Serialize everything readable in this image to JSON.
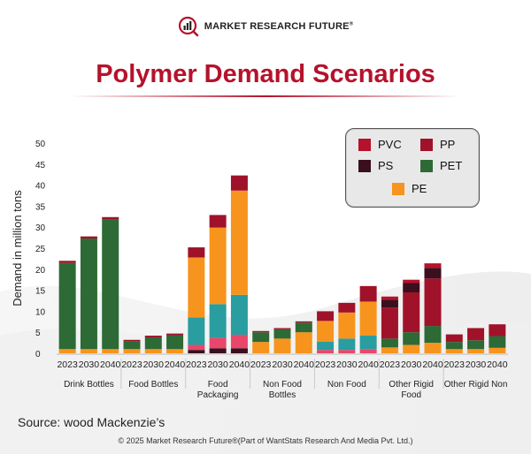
{
  "brand": {
    "name": "MARKET RESEARCH FUTURE",
    "reg": "®"
  },
  "title": "Polymer Demand Scenarios",
  "source": "Source: wood Mackenzie’s",
  "copyright": "© 2025 Market Research Future®(Part of WantStats Research And Media Pvt. Ltd.)",
  "colors": {
    "accent": "#b5122b",
    "PVC": "#b5122b",
    "PP": "#a0122a",
    "PS": "#3a0f1e",
    "PET": "#2d6a35",
    "PE": "#f7941d",
    "pink": "#e8476a",
    "teal": "#2a9da0"
  },
  "legend": [
    {
      "name": "PVC",
      "color": "#b5122b"
    },
    {
      "name": "PP",
      "color": "#a0122a"
    },
    {
      "name": "PS",
      "color": "#3a0f1e"
    },
    {
      "name": "PET",
      "color": "#2d6a35"
    },
    {
      "name": "PE",
      "color": "#f7941d"
    }
  ],
  "chart_data": {
    "type": "bar",
    "stacked": true,
    "ylabel": "Demand in million tons",
    "ylim": [
      0,
      50
    ],
    "yticks": [
      0,
      5,
      10,
      15,
      20,
      25,
      30,
      35,
      40,
      45,
      50
    ],
    "groups": [
      {
        "label": [
          "Drink Bottles"
        ],
        "years": [
          "2023",
          "2030",
          "2040"
        ],
        "stacks": [
          [
            {
              "s": "PE",
              "v": 1
            },
            {
              "s": "PET",
              "v": 20.5
            },
            {
              "s": "PP",
              "v": 0.5
            }
          ],
          [
            {
              "s": "PE",
              "v": 1
            },
            {
              "s": "PET",
              "v": 26.3
            },
            {
              "s": "PP",
              "v": 0.5
            }
          ],
          [
            {
              "s": "PE",
              "v": 1
            },
            {
              "s": "PET",
              "v": 30.8
            },
            {
              "s": "PP",
              "v": 0.6
            }
          ]
        ]
      },
      {
        "label": [
          "Food Bottles"
        ],
        "years": [
          "2023",
          "2030",
          "2040"
        ],
        "stacks": [
          [
            {
              "s": "PE",
              "v": 1
            },
            {
              "s": "PET",
              "v": 1.8
            },
            {
              "s": "PP",
              "v": 0.4
            }
          ],
          [
            {
              "s": "PE",
              "v": 1
            },
            {
              "s": "PET",
              "v": 2.8
            },
            {
              "s": "PP",
              "v": 0.4
            }
          ],
          [
            {
              "s": "PE",
              "v": 1
            },
            {
              "s": "PET",
              "v": 3.3
            },
            {
              "s": "PP",
              "v": 0.4
            }
          ]
        ]
      },
      {
        "label": [
          "Food",
          "Packaging"
        ],
        "years": [
          "2023",
          "2030",
          "2040"
        ],
        "stacks": [
          [
            {
              "s": "PS",
              "v": 0.8
            },
            {
              "s": "PINK",
              "v": 1.2
            },
            {
              "s": "TEAL",
              "v": 6.5
            },
            {
              "s": "PE",
              "v": 14.3
            },
            {
              "s": "PP",
              "v": 2.4
            }
          ],
          [
            {
              "s": "PS",
              "v": 1.2
            },
            {
              "s": "PINK",
              "v": 2.5
            },
            {
              "s": "TEAL",
              "v": 8
            },
            {
              "s": "PE",
              "v": 18.2
            },
            {
              "s": "PP",
              "v": 3
            }
          ],
          [
            {
              "s": "PS",
              "v": 1.2
            },
            {
              "s": "PINK",
              "v": 3.2
            },
            {
              "s": "TEAL",
              "v": 9.5
            },
            {
              "s": "PE",
              "v": 24.8
            },
            {
              "s": "PP",
              "v": 3.6
            }
          ]
        ]
      },
      {
        "label": [
          "Non Food",
          "Bottles"
        ],
        "years": [
          "2023",
          "2030",
          "2040"
        ],
        "stacks": [
          [
            {
              "s": "PE",
              "v": 2.7
            },
            {
              "s": "PET",
              "v": 2.3
            },
            {
              "s": "PP",
              "v": 0.3
            }
          ],
          [
            {
              "s": "PE",
              "v": 3.5
            },
            {
              "s": "PET",
              "v": 2.2
            },
            {
              "s": "PP",
              "v": 0.3
            }
          ],
          [
            {
              "s": "PE",
              "v": 5
            },
            {
              "s": "PET",
              "v": 2.3
            },
            {
              "s": "PP",
              "v": 0.3
            }
          ]
        ]
      },
      {
        "label": [
          "Non Food"
        ],
        "years": [
          "2023",
          "2030",
          "2040"
        ],
        "stacks": [
          [
            {
              "s": "PINK",
              "v": 0.8
            },
            {
              "s": "TEAL",
              "v": 2
            },
            {
              "s": "PE",
              "v": 4.9
            },
            {
              "s": "PP",
              "v": 2.3
            }
          ],
          [
            {
              "s": "PINK",
              "v": 0.8
            },
            {
              "s": "TEAL",
              "v": 2.7
            },
            {
              "s": "PE",
              "v": 6.2
            },
            {
              "s": "PP",
              "v": 2.3
            }
          ],
          [
            {
              "s": "PINK",
              "v": 1
            },
            {
              "s": "TEAL",
              "v": 3.2
            },
            {
              "s": "PE",
              "v": 8.1
            },
            {
              "s": "PP",
              "v": 3.7
            }
          ]
        ]
      },
      {
        "label": [
          "Other Rigid",
          "Food"
        ],
        "years": [
          "2023",
          "2030",
          "2040"
        ],
        "stacks": [
          [
            {
              "s": "PE",
              "v": 1.4
            },
            {
              "s": "PET",
              "v": 2.1
            },
            {
              "s": "PP",
              "v": 7.4
            },
            {
              "s": "PS",
              "v": 1.8
            },
            {
              "s": "PVC",
              "v": 0.8
            }
          ],
          [
            {
              "s": "PE",
              "v": 2
            },
            {
              "s": "PET",
              "v": 3
            },
            {
              "s": "PP",
              "v": 9.5
            },
            {
              "s": "PS",
              "v": 2.2
            },
            {
              "s": "PVC",
              "v": 0.8
            }
          ],
          [
            {
              "s": "PE",
              "v": 2.5
            },
            {
              "s": "PET",
              "v": 4
            },
            {
              "s": "PP",
              "v": 11.3
            },
            {
              "s": "PS",
              "v": 2.5
            },
            {
              "s": "PVC",
              "v": 1.1
            }
          ]
        ]
      },
      {
        "label": [
          "Other Rigid Non"
        ],
        "years": [
          "2023",
          "2030",
          "2040"
        ],
        "stacks": [
          [
            {
              "s": "PE",
              "v": 1
            },
            {
              "s": "PET",
              "v": 1.7
            },
            {
              "s": "PP",
              "v": 1.8
            }
          ],
          [
            {
              "s": "PE",
              "v": 1
            },
            {
              "s": "PET",
              "v": 2.1
            },
            {
              "s": "PP",
              "v": 2.9
            }
          ],
          [
            {
              "s": "PE",
              "v": 1.3
            },
            {
              "s": "PET",
              "v": 2.8
            },
            {
              "s": "PP",
              "v": 2.8
            }
          ]
        ]
      }
    ]
  }
}
